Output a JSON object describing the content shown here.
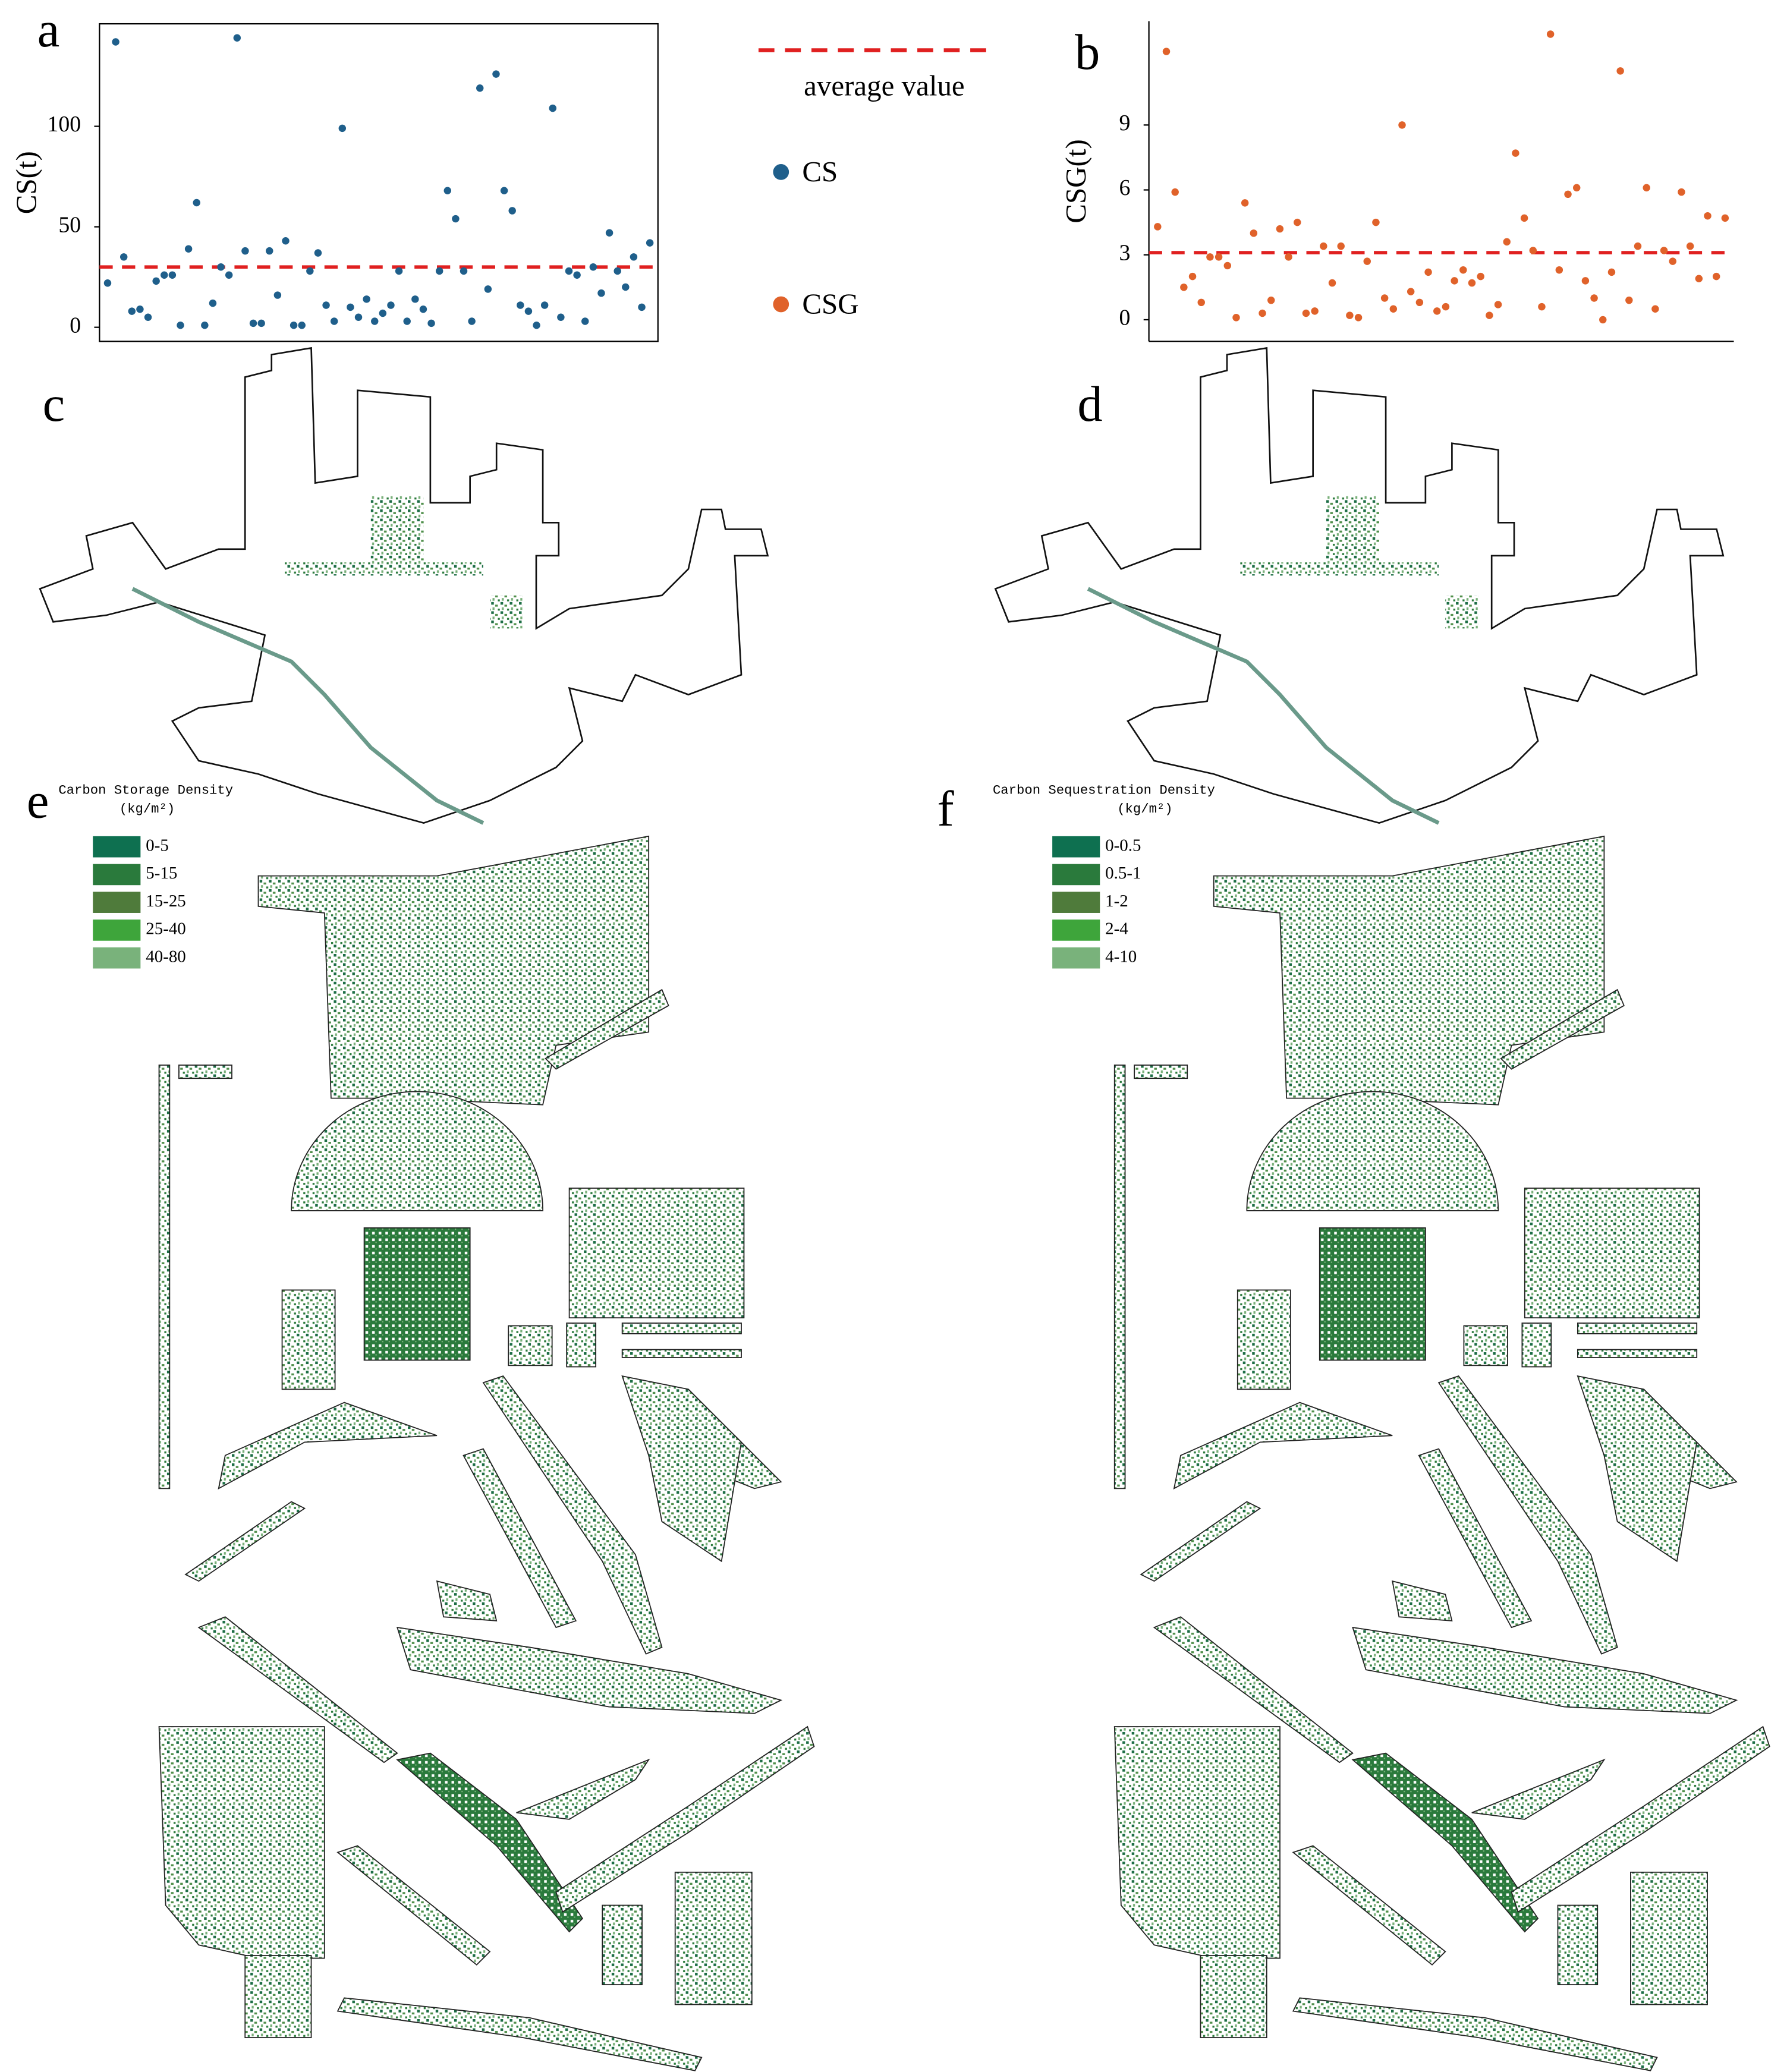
{
  "chart_data": [
    {
      "type": "scatter",
      "panel": "a",
      "y_label": "CS(t)",
      "ylim": [
        -7,
        151
      ],
      "yticks": [
        0,
        50,
        100
      ],
      "average": 30,
      "average_label": "average value",
      "average_color": "#e02020",
      "series": [
        {
          "name": "CS",
          "color": "#1f5f8b",
          "values": [
            22,
            142,
            35,
            8,
            9,
            5,
            23,
            26,
            26,
            1,
            39,
            62,
            1,
            12,
            30,
            26,
            144,
            38,
            2,
            2,
            38,
            16,
            43,
            1,
            1,
            28,
            37,
            11,
            3,
            99,
            10,
            5,
            14,
            3,
            7,
            11,
            28,
            3,
            14,
            9,
            2,
            28,
            68,
            54,
            28,
            3,
            119,
            19,
            126,
            68,
            58,
            11,
            8,
            1,
            11,
            109,
            5,
            28,
            26,
            3,
            30,
            17,
            47,
            28,
            20,
            35,
            10,
            42
          ]
        }
      ]
    },
    {
      "type": "scatter",
      "panel": "b",
      "y_label": "CSG(t)",
      "ylim": [
        -1,
        13.8
      ],
      "yticks": [
        0,
        3,
        6,
        9
      ],
      "average": 3.1,
      "average_color": "#e02020",
      "series": [
        {
          "name": "CSG",
          "color": "#e0622a",
          "values": [
            4.3,
            12.4,
            5.9,
            1.5,
            2.0,
            0.8,
            2.9,
            2.9,
            2.5,
            0.1,
            5.4,
            4.0,
            0.3,
            0.9,
            4.2,
            2.9,
            4.5,
            0.3,
            0.4,
            3.4,
            1.7,
            3.4,
            0.2,
            0.1,
            2.7,
            4.5,
            1.0,
            0.5,
            9.0,
            1.3,
            0.8,
            2.2,
            0.4,
            0.6,
            1.8,
            2.3,
            1.7,
            2.0,
            0.2,
            0.7,
            3.6,
            7.7,
            4.7,
            3.2,
            0.6,
            13.2,
            2.3,
            5.8,
            6.1,
            1.8,
            1.0,
            0,
            2.2,
            11.5,
            0.9,
            3.4,
            6.1,
            0.5,
            3.2,
            2.7,
            5.9,
            3.4,
            1.9,
            4.8,
            2.0,
            4.7
          ]
        }
      ]
    }
  ],
  "maps": [
    {
      "panel": "c"
    },
    {
      "panel": "d"
    },
    {
      "panel": "e",
      "legend_title": "Carbon Storage Density",
      "legend_unit": "(kg/m²)",
      "classes": [
        {
          "label": "0-5",
          "color": "#0e7050"
        },
        {
          "label": "5-15",
          "color": "#2a7a3c"
        },
        {
          "label": "15-25",
          "color": "#4f7b3b"
        },
        {
          "label": "25-40",
          "color": "#3ea53b"
        },
        {
          "label": "40-80",
          "color": "#79b27b"
        }
      ]
    },
    {
      "panel": "f",
      "legend_title": "Carbon Sequestration Density",
      "legend_unit": "(kg/m²)",
      "classes": [
        {
          "label": "0-0.5",
          "color": "#0e7050"
        },
        {
          "label": "0.5-1",
          "color": "#2a7a3c"
        },
        {
          "label": "1-2",
          "color": "#4f7b3b"
        },
        {
          "label": "2-4",
          "color": "#3ea53b"
        },
        {
          "label": "4-10",
          "color": "#79b27b"
        }
      ]
    }
  ]
}
